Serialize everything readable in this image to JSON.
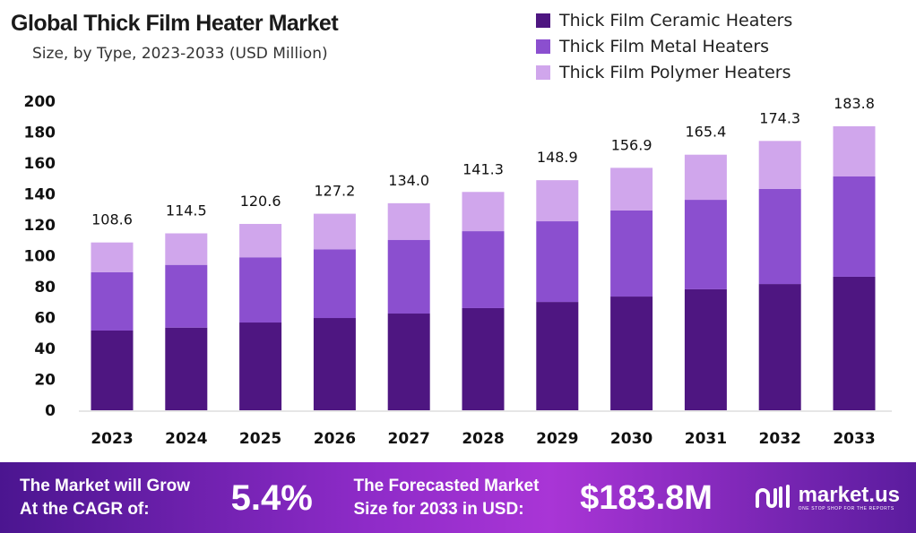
{
  "chart_data": {
    "type": "bar",
    "stacked": true,
    "title": "Global Thick Film Heater Market",
    "subtitle": "Size, by Type, 2023-2033 (USD Million)",
    "xlabel": "",
    "ylabel": "",
    "ylim": [
      0,
      200
    ],
    "yticks": [
      0,
      20,
      40,
      60,
      80,
      100,
      120,
      140,
      160,
      180,
      200
    ],
    "grid": false,
    "legend_position": "top-right",
    "categories": [
      "2023",
      "2024",
      "2025",
      "2026",
      "2027",
      "2028",
      "2029",
      "2030",
      "2031",
      "2032",
      "2033"
    ],
    "series": [
      {
        "name": "Thick Film Ceramic Heaters",
        "color": "#4e1681",
        "values": [
          51.6,
          53.5,
          56.8,
          59.7,
          62.6,
          66.1,
          70.1,
          73.6,
          78.3,
          81.7,
          86.4
        ]
      },
      {
        "name": "Thick Film Metal Heaters",
        "color": "#8b4fcf",
        "values": [
          37.8,
          40.6,
          42.2,
          44.5,
          47.7,
          49.8,
          52.2,
          55.7,
          57.9,
          61.5,
          64.9
        ]
      },
      {
        "name": "Thick Film Polymer Heaters",
        "color": "#d0a6ec",
        "values": [
          19.2,
          20.4,
          21.6,
          23.0,
          23.7,
          25.4,
          26.6,
          27.6,
          29.2,
          31.1,
          32.5
        ]
      }
    ],
    "totals": [
      "108.6",
      "114.5",
      "120.6",
      "127.2",
      "134.0",
      "141.3",
      "148.9",
      "156.9",
      "165.4",
      "174.3",
      "183.8"
    ]
  },
  "banner": {
    "cagr_label_1": "The Market will Grow",
    "cagr_label_2": "At the CAGR of:",
    "cagr_value": "5.4%",
    "forecast_label_1": "The Forecasted Market",
    "forecast_label_2": "Size for 2033 in USD:",
    "forecast_value": "$183.8M",
    "logo_name": "market.us",
    "logo_tagline": "ONE STOP SHOP FOR THE REPORTS"
  }
}
